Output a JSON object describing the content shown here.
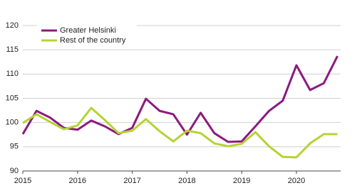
{
  "chart_data": {
    "type": "line",
    "categories": [
      "2015",
      null,
      null,
      null,
      "2016",
      null,
      null,
      null,
      "2017",
      null,
      null,
      null,
      "2018",
      null,
      null,
      null,
      "2019",
      null,
      null,
      null,
      "2020",
      null,
      null,
      null
    ],
    "series": [
      {
        "name": "Greater Helsinki",
        "color": "#8c1a7e",
        "values": [
          97.6,
          102.4,
          101.0,
          98.9,
          98.5,
          100.4,
          99.2,
          97.6,
          98.9,
          104.9,
          102.4,
          101.7,
          97.5,
          102.0,
          97.8,
          96.0,
          96.1,
          99.2,
          102.4,
          104.5,
          111.8,
          106.7,
          108.1,
          113.7
        ]
      },
      {
        "name": "Rest of the country",
        "color": "#b5d334",
        "values": [
          99.9,
          101.7,
          100.1,
          98.6,
          99.4,
          103.0,
          100.5,
          97.8,
          98.3,
          100.7,
          98.2,
          96.1,
          98.3,
          97.8,
          95.7,
          95.1,
          95.6,
          98.0,
          95.1,
          92.9,
          92.8,
          95.7,
          97.6,
          97.6
        ]
      }
    ],
    "ylim": [
      90,
      120
    ],
    "yticks": [
      90,
      95,
      100,
      105,
      110,
      115,
      120
    ],
    "grid": true,
    "legend": "top-left"
  }
}
